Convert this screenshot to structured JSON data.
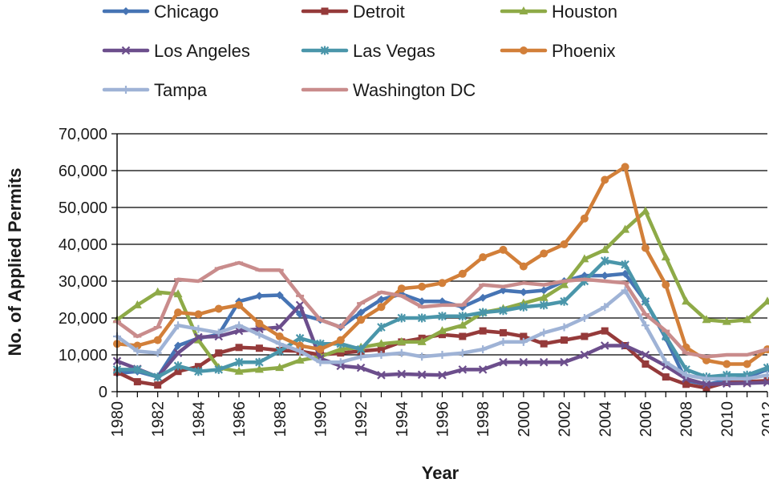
{
  "chart_data": {
    "type": "line",
    "title": "",
    "xlabel": "Year",
    "ylabel": "No. of Applied Permits",
    "x": [
      1980,
      1981,
      1982,
      1983,
      1984,
      1985,
      1986,
      1987,
      1988,
      1989,
      1990,
      1991,
      1992,
      1993,
      1994,
      1995,
      1996,
      1997,
      1998,
      1999,
      2000,
      2001,
      2002,
      2003,
      2004,
      2005,
      2006,
      2007,
      2008,
      2009,
      2010,
      2011,
      2012
    ],
    "xticks": [
      "1980",
      "1982",
      "1984",
      "1986",
      "1988",
      "1990",
      "1992",
      "1994",
      "1996",
      "1998",
      "2000",
      "2002",
      "2004",
      "2006",
      "2008",
      "2010",
      "2012"
    ],
    "xticks_values": [
      1980,
      1982,
      1984,
      1986,
      1988,
      1990,
      1992,
      1994,
      1996,
      1998,
      2000,
      2002,
      2004,
      2006,
      2008,
      2010,
      2012
    ],
    "xlim": [
      1980,
      2012
    ],
    "yticks": [
      "0",
      "10,000",
      "20,000",
      "30,000",
      "40,000",
      "50,000",
      "60,000",
      "70,000"
    ],
    "yticks_values": [
      0,
      10000,
      20000,
      30000,
      40000,
      50000,
      60000,
      70000
    ],
    "ylim": [
      0,
      70000
    ],
    "grid": "horizontal",
    "legend_position": "top",
    "series": [
      {
        "name": "Chicago",
        "color": "#4674b4",
        "marker": "diamond",
        "values": [
          5000,
          5500,
          4000,
          12500,
          14500,
          15500,
          24500,
          26000,
          26200,
          21000,
          19500,
          17500,
          21500,
          25000,
          26500,
          24500,
          24500,
          23000,
          25500,
          27500,
          27000,
          27500,
          30000,
          31500,
          31500,
          32000,
          24500,
          14500,
          3000,
          2000,
          3000,
          4000,
          6000
        ]
      },
      {
        "name": "Detroit",
        "color": "#953a3a",
        "marker": "square",
        "values": [
          5300,
          2700,
          1800,
          5500,
          6800,
          10500,
          12000,
          11800,
          11200,
          11000,
          10000,
          10500,
          11000,
          11500,
          13500,
          14500,
          15500,
          15000,
          16500,
          16000,
          15000,
          13000,
          14000,
          15000,
          16500,
          12500,
          7500,
          4000,
          2000,
          1000,
          2500,
          2700,
          3000
        ]
      },
      {
        "name": "Houston",
        "color": "#8eaa47",
        "marker": "triangle",
        "values": [
          19500,
          23500,
          27000,
          26500,
          14000,
          6500,
          5500,
          6000,
          6500,
          8500,
          9500,
          11500,
          12000,
          13000,
          13500,
          13500,
          16500,
          18000,
          21500,
          22500,
          24000,
          25500,
          29000,
          36000,
          38500,
          44000,
          49000,
          36500,
          24500,
          19500,
          19000,
          19500,
          24500
        ]
      },
      {
        "name": "Los Angeles",
        "color": "#6c4e8c",
        "marker": "x",
        "values": [
          8300,
          6200,
          4000,
          10500,
          14800,
          15000,
          16500,
          17000,
          17500,
          23500,
          9000,
          7000,
          6500,
          4500,
          4800,
          4600,
          4500,
          6000,
          6000,
          8000,
          8000,
          8000,
          8000,
          10000,
          12500,
          12500,
          10000,
          7000,
          3500,
          2000,
          2200,
          2300,
          2500
        ]
      },
      {
        "name": "Las Vegas",
        "color": "#4a96aa",
        "marker": "star",
        "values": [
          6000,
          6000,
          4000,
          7000,
          5500,
          6000,
          8000,
          8000,
          11000,
          14500,
          13000,
          13000,
          11500,
          17500,
          20000,
          20000,
          20500,
          20500,
          21500,
          22000,
          23000,
          23500,
          24500,
          30000,
          35500,
          34500,
          24500,
          15000,
          6000,
          4000,
          4500,
          4500,
          6500
        ]
      },
      {
        "name": "Phoenix",
        "color": "#d27f39",
        "marker": "circle",
        "values": [
          13000,
          12500,
          14000,
          21500,
          21000,
          22500,
          23500,
          18500,
          15000,
          12500,
          11500,
          14000,
          19500,
          23000,
          28000,
          28500,
          29500,
          32000,
          36500,
          38500,
          34000,
          37500,
          40000,
          47000,
          57500,
          61000,
          39000,
          29000,
          12000,
          8500,
          7500,
          7500,
          11500
        ]
      },
      {
        "name": "Tampa",
        "color": "#9fb3d6",
        "marker": "plus",
        "values": [
          15000,
          11000,
          10500,
          18000,
          17000,
          16000,
          18000,
          15500,
          13000,
          11000,
          8000,
          8000,
          9500,
          10000,
          10500,
          9500,
          10000,
          10500,
          11500,
          13500,
          13500,
          16000,
          17500,
          20000,
          23000,
          27500,
          18000,
          8000,
          4500,
          3500,
          3500,
          3500,
          4500
        ]
      },
      {
        "name": "Washington DC",
        "color": "#c98c8c",
        "marker": "dash",
        "values": [
          19000,
          15000,
          17500,
          30500,
          30000,
          33500,
          35000,
          33000,
          33000,
          26000,
          19500,
          17500,
          24000,
          27000,
          26000,
          23000,
          23500,
          23500,
          29000,
          28500,
          29500,
          29000,
          30000,
          30500,
          30000,
          29500,
          21000,
          16500,
          10500,
          9500,
          10000,
          10000,
          11500
        ]
      }
    ]
  }
}
